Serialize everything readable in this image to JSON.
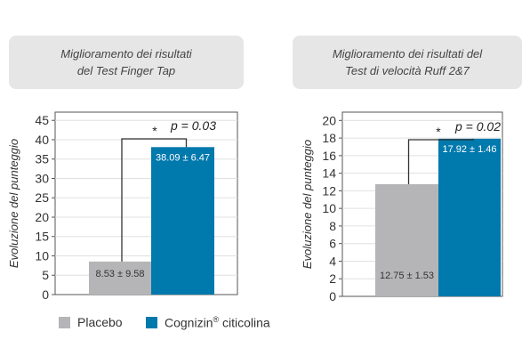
{
  "colors": {
    "placebo": "#b5b5b8",
    "cognizin": "#0079ad",
    "frame": "#555555",
    "grid": "#e0e0e0",
    "bracket": "#333333"
  },
  "legend": {
    "placebo_label": "Placebo",
    "cognizin_label": "Cognizin",
    "cognizin_mark": "®",
    "cognizin_suffix": " citicolina"
  },
  "chart_data": [
    {
      "type": "bar",
      "title_line1": "Miglioramento dei risultati",
      "title_line2": "del Test Finger Tap",
      "ylabel": "Evoluzione del punteggio",
      "ylim": [
        0,
        45
      ],
      "yticks": [
        0,
        5,
        10,
        15,
        20,
        25,
        30,
        35,
        40,
        45
      ],
      "grid": true,
      "series": [
        {
          "name": "Placebo",
          "value": 8.53,
          "label": "8.53 ± 9.58"
        },
        {
          "name": "Cognizin® citicolina",
          "value": 38.09,
          "label": "38.09 ± 6.47"
        }
      ],
      "significance": {
        "star": "*",
        "p_text": "p = 0.03"
      }
    },
    {
      "type": "bar",
      "title_line1": "Miglioramento dei risultati del",
      "title_line2": "Test di velocità Ruff 2&7",
      "ylabel": "Evoluzione del punteggio",
      "ylim": [
        0,
        20
      ],
      "yticks": [
        0,
        2,
        4,
        6,
        8,
        10,
        12,
        14,
        16,
        18,
        20
      ],
      "grid": true,
      "series": [
        {
          "name": "Placebo",
          "value": 12.75,
          "label": "12.75 ± 1.53"
        },
        {
          "name": "Cognizin® citicolina",
          "value": 17.92,
          "label": "17.92 ± 1.46"
        }
      ],
      "significance": {
        "star": "*",
        "p_text": "p = 0.02"
      }
    }
  ]
}
